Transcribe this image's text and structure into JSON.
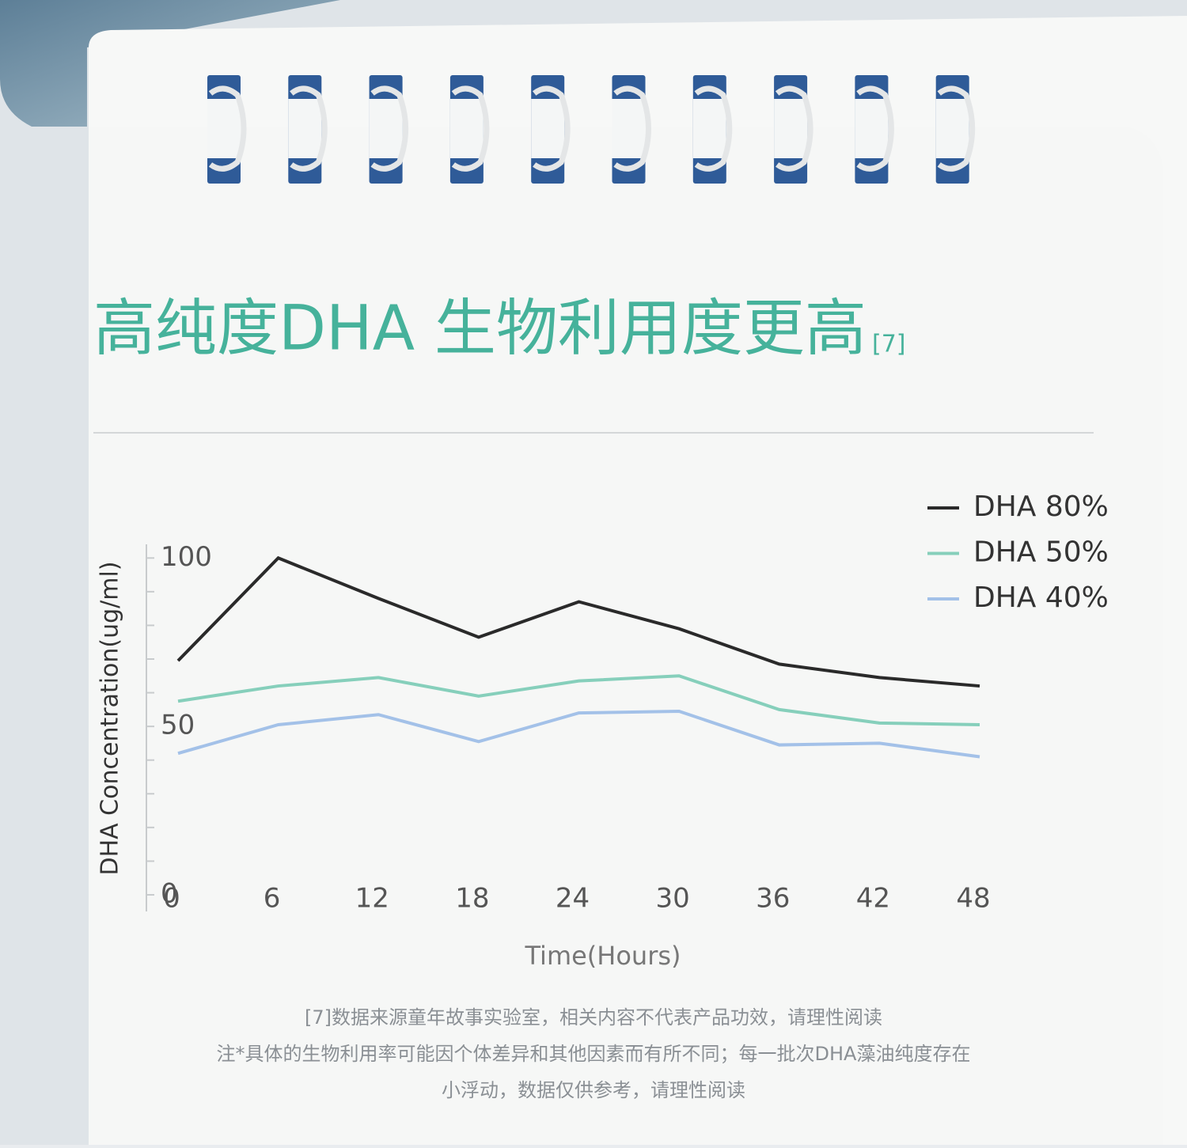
{
  "chart_data": {
    "type": "line",
    "title": "高纯度DHA 生物利用度更高",
    "title_note": "[7]",
    "x_label": "Time(Hours)",
    "y_label": "DHA Concentration(ug/ml)",
    "x": [
      0,
      6,
      12,
      18,
      24,
      30,
      36,
      42,
      48
    ],
    "xlim": [
      0,
      48
    ],
    "xticks": [
      0,
      6,
      12,
      18,
      24,
      30,
      36,
      42,
      48
    ],
    "ylim": [
      0,
      105
    ],
    "yticks": [
      0,
      50,
      100
    ],
    "yminorticks": [
      10,
      20,
      30,
      40,
      60,
      70,
      80,
      90
    ],
    "legend": "top-right",
    "series": [
      {
        "name": "DHA 80%",
        "color": "#2a2a2a",
        "values": [
          69.5,
          100,
          88,
          76.5,
          87,
          79,
          68.5,
          64.5,
          62
        ]
      },
      {
        "name": "DHA 50%",
        "color": "#86cfbb",
        "values": [
          57.5,
          62,
          64.5,
          59,
          63.5,
          65,
          55,
          51,
          50.5
        ]
      },
      {
        "name": "DHA 40%",
        "color": "#a3c1e8",
        "values": [
          42,
          50.5,
          53.5,
          45.5,
          54,
          54.5,
          44.5,
          45,
          41
        ]
      }
    ],
    "footnotes": [
      "[7]数据来源童年故事实验室，相关内容不代表产品功效，请理性阅读",
      "注*具体的生物利用率可能因个体差异和其他因素而有所不同；每一批次DHA藻油纯度存在",
      "小浮动，数据仅供参考，请理性阅读"
    ]
  }
}
